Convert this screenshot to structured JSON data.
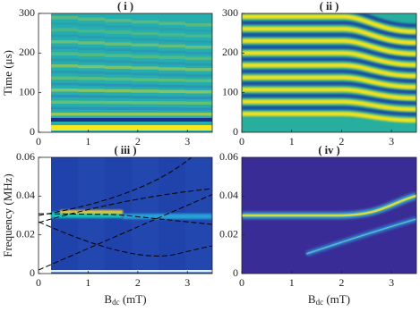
{
  "chart_data": [
    {
      "type": "heatmap",
      "title": "( i )",
      "y_label": "Time (μs)",
      "xlim": [
        0,
        3.5
      ],
      "xticks": [
        0,
        1,
        2,
        3
      ],
      "ylim": [
        0,
        300
      ],
      "yticks": [
        0,
        100,
        200,
        300
      ]
    },
    {
      "type": "heatmap",
      "title": "( ii )",
      "xlim": [
        0,
        3.5
      ],
      "xticks": [
        0,
        1,
        2,
        3
      ],
      "ylim": [
        0,
        300
      ],
      "yticks": [
        0,
        100,
        200,
        300
      ]
    },
    {
      "type": "heatmap",
      "title": "( iii )",
      "y_label": "Frequency (MHz)",
      "x_label": {
        "main": "B",
        "sub": "dc",
        "unit": "(mT)"
      },
      "xlim": [
        0,
        3.5
      ],
      "xticks": [
        0,
        1,
        2,
        3
      ],
      "ylim": [
        0,
        0.06
      ],
      "yticks": [
        0,
        0.02,
        0.04,
        0.06
      ]
    },
    {
      "type": "heatmap",
      "title": "( iv )",
      "x_label": {
        "main": "B",
        "sub": "dc",
        "unit": "(mT)"
      },
      "xlim": [
        0,
        3.5
      ],
      "xticks": [
        0,
        1,
        2,
        3
      ],
      "ylim": [
        0,
        0.06
      ],
      "yticks": [
        0,
        0.02,
        0.04,
        0.06
      ]
    }
  ]
}
